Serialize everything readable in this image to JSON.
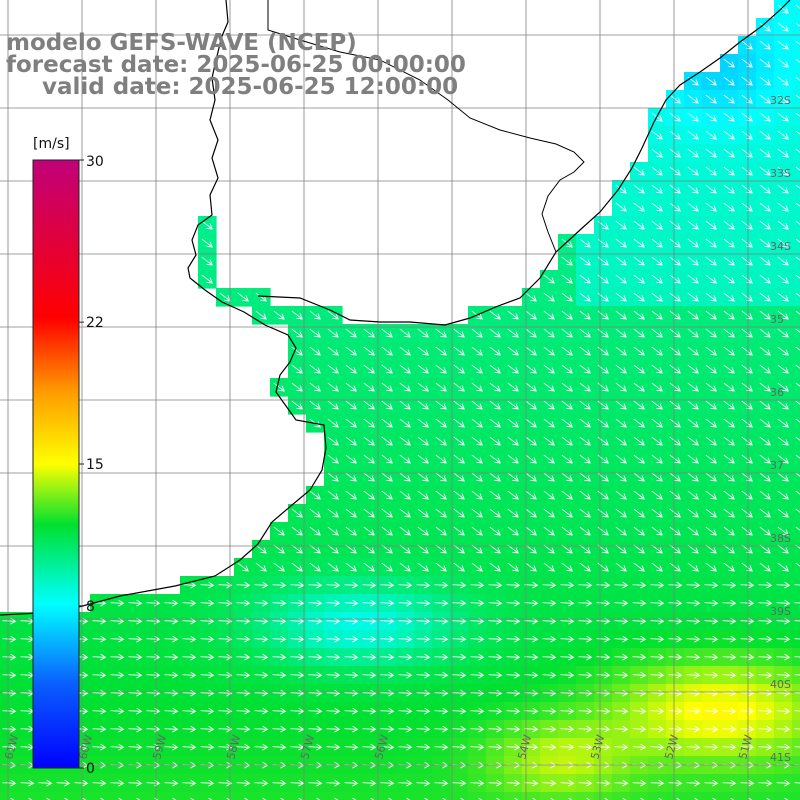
{
  "title": {
    "line1": "modelo GEFS-WAVE (NCEP)",
    "line2": "forecast date: 2025-06-25 00:00:00",
    "line3": "valid date: 2025-06-25 12:00:00"
  },
  "colorbar": {
    "unit": "[m/s]",
    "min": 0,
    "max": 30,
    "tick_labels": [
      "30",
      "22",
      "15",
      "8",
      "0"
    ],
    "tick_values": [
      30,
      22,
      15,
      8,
      0
    ]
  },
  "lat_labels": [
    "32S",
    "33S",
    "34S",
    "35",
    "36",
    "37",
    "38S",
    "39S",
    "40S",
    "41S"
  ],
  "lon_labels": [
    "61W",
    "60W",
    "59W",
    "58W",
    "57W",
    "56W",
    "54W",
    "53W",
    "52W",
    "51W"
  ],
  "colors": {
    "land": "#ffffff",
    "coast": "#000000",
    "grid": "#808080",
    "title": "#7f7f7f",
    "arrow": "#ffffff"
  }
}
